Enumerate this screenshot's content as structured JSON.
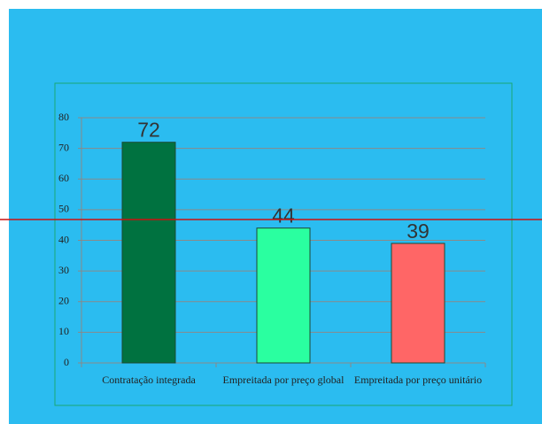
{
  "chart_data": {
    "type": "bar",
    "categories": [
      "Contratação integrada",
      "Empreitada por preço global",
      "Empreitada por preço unitário"
    ],
    "values": [
      72,
      44,
      39
    ],
    "colors": [
      "#007240",
      "#2affa0",
      "#ff6666"
    ],
    "ylim": [
      0,
      80
    ],
    "yticks": [
      0,
      10,
      20,
      30,
      40,
      50,
      60,
      70,
      80
    ],
    "grid": true
  }
}
